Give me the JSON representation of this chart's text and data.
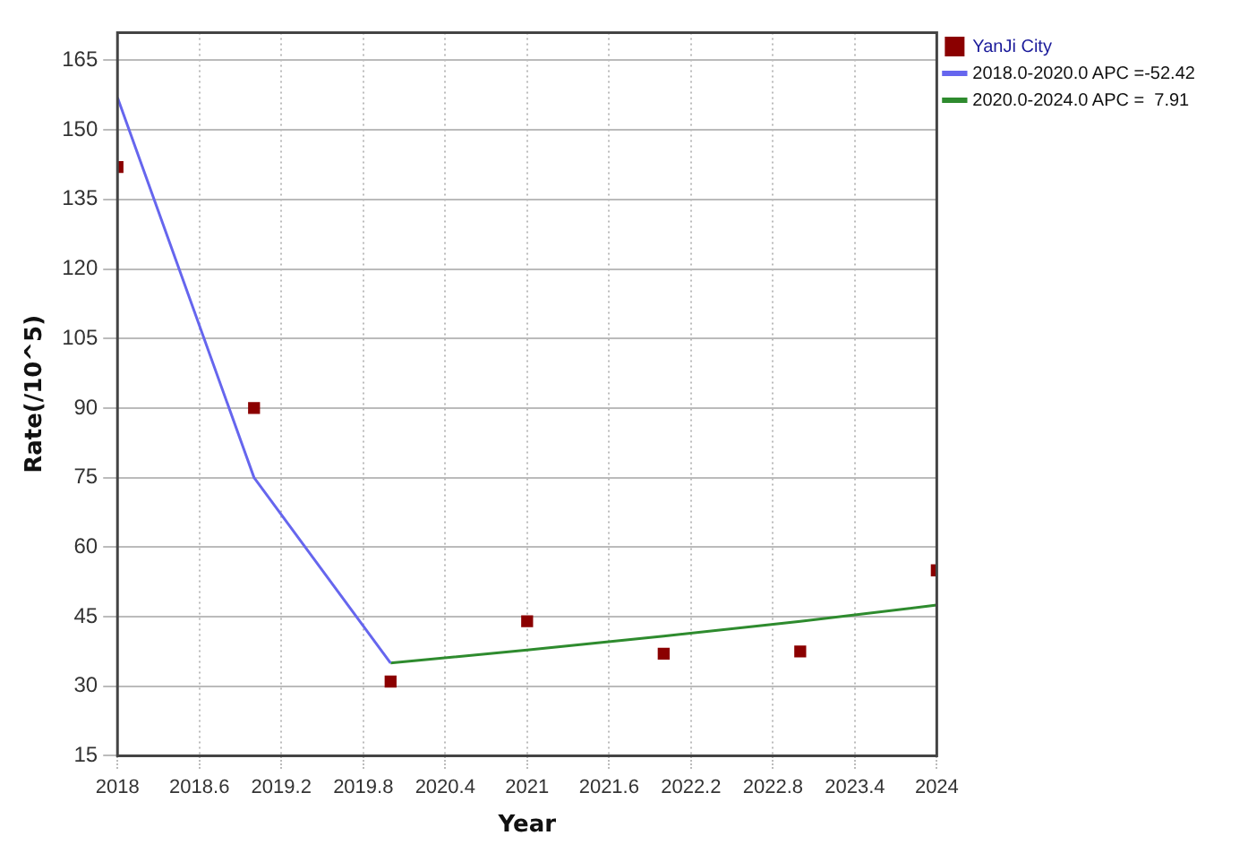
{
  "chart_data": {
    "type": "scatter",
    "xlabel": "Year",
    "ylabel": "Rate(/10^5)",
    "xlim": [
      2018,
      2024
    ],
    "xticks": [
      2018,
      2018.6,
      2019.2,
      2019.8,
      2020.4,
      2021,
      2021.6,
      2022.2,
      2022.8,
      2023.4,
      2024
    ],
    "ylim": [
      15,
      171
    ],
    "yticks": [
      15,
      30,
      45,
      60,
      75,
      90,
      105,
      120,
      135,
      150,
      165
    ],
    "grid": true,
    "legend": "top right",
    "series": [
      {
        "name": "YanJi City",
        "type": "scatter",
        "marker": "square",
        "color": "#8b0000",
        "x": [
          2018,
          2019,
          2020,
          2021,
          2022,
          2023,
          2024
        ],
        "values": [
          142,
          90,
          31,
          44,
          37,
          37.5,
          55
        ]
      },
      {
        "name": "2018.0-2020.0 APC =-52.42",
        "type": "line",
        "marker": "none",
        "color": "#6666ee",
        "x": [
          2018,
          2019,
          2020
        ],
        "values": [
          157,
          75,
          35
        ]
      },
      {
        "name": "2020.0-2024.0 APC =  7.91",
        "type": "line",
        "marker": "none",
        "color": "#2e8b2e",
        "x": [
          2020,
          2021,
          2022,
          2023,
          2024
        ],
        "values": [
          35,
          37.8,
          40.8,
          44,
          47.5
        ]
      }
    ]
  }
}
